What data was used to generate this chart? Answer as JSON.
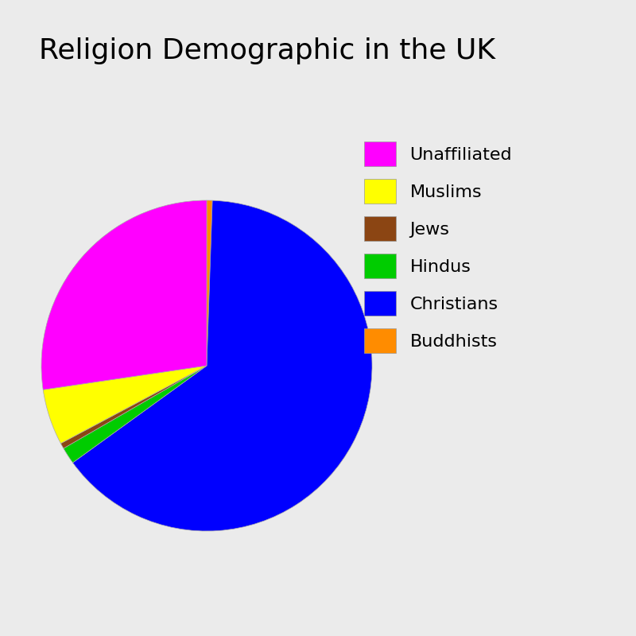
{
  "title": "Religion Demographic in the UK",
  "labels": [
    "Buddhists",
    "Christians",
    "Hindus",
    "Jews",
    "Muslims",
    "Unaffiliated"
  ],
  "values": [
    0.5,
    59.0,
    1.5,
    0.5,
    5.0,
    25.0
  ],
  "colors": [
    "#ff8c00",
    "#0000ff",
    "#00cc00",
    "#8b4513",
    "#ffff00",
    "#ff00ff"
  ],
  "background_color": "#ebebeb",
  "title_fontsize": 26,
  "legend_fontsize": 16,
  "startangle": 90,
  "wedge_linewidth": 0.5,
  "wedge_edgecolor": "#aaaaaa"
}
